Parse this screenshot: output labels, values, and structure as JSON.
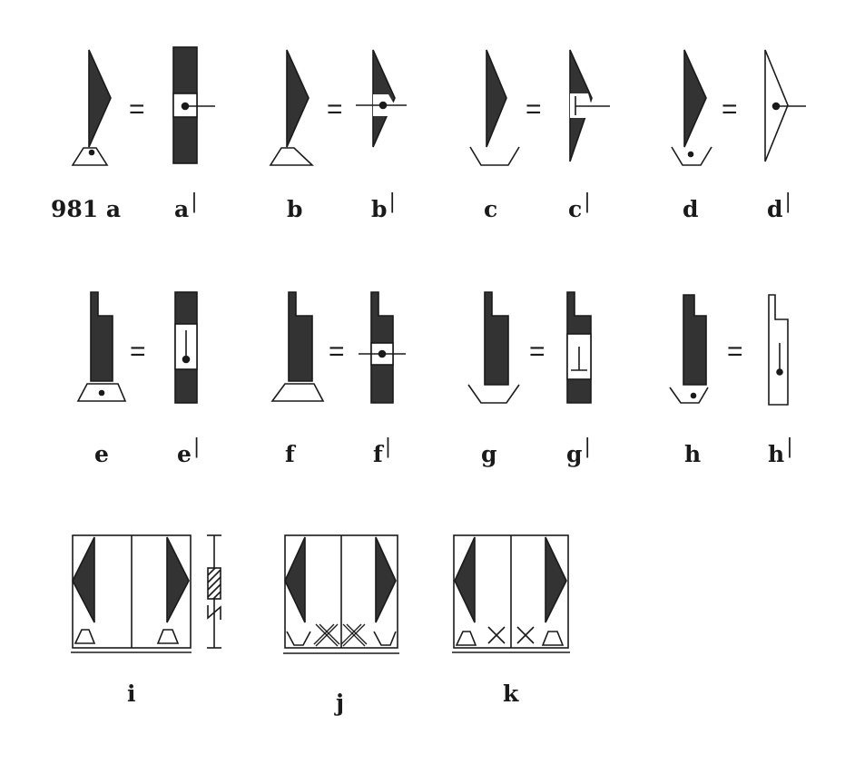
{
  "figure_number": "981",
  "labels": {
    "a": "a",
    "a_prime": "a",
    "b": "b",
    "b_prime": "b",
    "c": "c",
    "c_prime": "c",
    "d": "d",
    "d_prime": "d",
    "e": "e",
    "e_prime": "e",
    "f": "f",
    "f_prime": "f",
    "g": "g",
    "g_prime": "g",
    "h": "h",
    "h_prime": "h",
    "i": "i",
    "j": "j",
    "k": "k"
  },
  "prime_mark": "|",
  "equals_sign": "=",
  "colors": {
    "ink": "#1a1a1a",
    "fill": "#333333",
    "paper": "#ffffff"
  }
}
